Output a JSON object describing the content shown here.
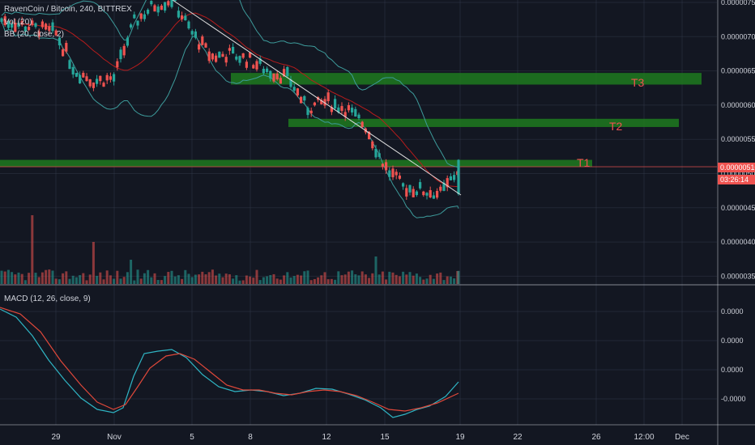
{
  "legend": {
    "symbol": "RavenCoin / Bitcoin, 240, BITTREX",
    "vol": "Vol (20)",
    "bb": "BB (20, close, 2)",
    "macd": "MACD (12, 26, close, 9)"
  },
  "price_axis": {
    "labels": [
      "0.00000750",
      "0.00000700",
      "0.00000650",
      "0.00000600",
      "0.00000550",
      "0.00000500",
      "0.00000450",
      "0.00000400",
      "0.00000350"
    ],
    "current_price": "0.00000510",
    "countdown": "03:26:14"
  },
  "macd_axis": {
    "labels": [
      "0.0000",
      "0.0000",
      "0.0000",
      "-0.0000"
    ]
  },
  "time_axis": {
    "labels": [
      "29",
      "Nov",
      "5",
      "8",
      "12",
      "15",
      "19",
      "22",
      "26",
      "12:00",
      "Dec"
    ]
  },
  "targets": [
    "T1",
    "T2",
    "T3"
  ],
  "colors": {
    "background": "#131722",
    "up": "#26a69a",
    "down": "#ef5350",
    "zone": "#1e7a1e",
    "trendline": "#e0e0e0",
    "bb_band": "#3d9b9b",
    "bb_basis": "#b71c1c",
    "macd_line": "#2fb5c4",
    "signal_line": "#e0483a",
    "grid": "#363c4e",
    "text": "#d1d4dc"
  },
  "chart_data": {
    "type": "candlestick",
    "title": "RavenCoin / Bitcoin, 240, BITTREX",
    "x_dates": [
      "Oct 29",
      "Nov 1",
      "Nov 5",
      "Nov 8",
      "Nov 12",
      "Nov 15",
      "Nov 19",
      "Nov 22",
      "Nov 26",
      "12:00",
      "Dec 1"
    ],
    "ylim": [
      3.45e-06,
      7.55e-06
    ],
    "last_price": 5.1e-06,
    "price_path": [
      [
        "Oct 27",
        7.25e-06
      ],
      [
        "Oct 29",
        7.05e-06
      ],
      [
        "Oct 30",
        6.5e-06
      ],
      [
        "Oct 31",
        6.35e-06
      ],
      [
        "Nov 1",
        6.4e-06
      ],
      [
        "Nov 2",
        7.2e-06
      ],
      [
        "Nov 3",
        7.45e-06
      ],
      [
        "Nov 4",
        7.55e-06
      ],
      [
        "Nov 5",
        7.05e-06
      ],
      [
        "Nov 6",
        6.7e-06
      ],
      [
        "Nov 7",
        6.75e-06
      ],
      [
        "Nov 8",
        6.65e-06
      ],
      [
        "Nov 9",
        6.5e-06
      ],
      [
        "Nov 10",
        6.4e-06
      ],
      [
        "Nov 11",
        5.95e-06
      ],
      [
        "Nov 12",
        6.05e-06
      ],
      [
        "Nov 13",
        5.95e-06
      ],
      [
        "Nov 14",
        5.7e-06
      ],
      [
        "Nov 15",
        5.1e-06
      ],
      [
        "Nov 16",
        4.8e-06
      ],
      [
        "Nov 17",
        4.75e-06
      ],
      [
        "Nov 18",
        4.7e-06
      ],
      [
        "Nov 19",
        5.1e-06
      ]
    ],
    "target_zones": [
      {
        "name": "T1",
        "low": 5.1e-06,
        "high": 5.2e-06,
        "from": "Oct 27",
        "to": "Nov 24"
      },
      {
        "name": "T2",
        "low": 5.68e-06,
        "high": 5.8e-06,
        "from": "Nov 10",
        "to": "Nov 30"
      },
      {
        "name": "T3",
        "low": 6.3e-06,
        "high": 6.47e-06,
        "from": "Nov 7",
        "to": "Dec 1"
      }
    ],
    "trendline": [
      [
        "Nov 4",
        7.55e-06
      ],
      [
        "Nov 19",
        4.65e-06
      ]
    ],
    "indicators": [
      "Vol (20)",
      "BB (20, close, 2)",
      "MACD (12, 26, close, 9)"
    ]
  }
}
